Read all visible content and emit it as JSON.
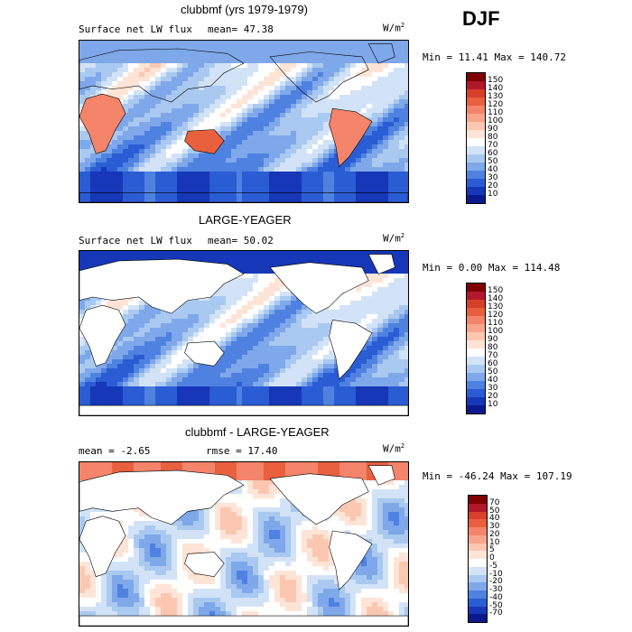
{
  "season": "DJF",
  "panels": [
    {
      "title": "clubbmf (yrs 1979-1979)",
      "left_label": "Surface net LW flux",
      "mean_text": "mean=  47.38",
      "units": "W/m",
      "units_exp": "2",
      "minmax": "Min =  11.41 Max = 140.72",
      "colorbar_labels": [
        "150",
        "140",
        "130",
        "120",
        "110",
        "100",
        "90",
        "80",
        "70",
        "60",
        "50",
        "40",
        "30",
        "20",
        "10"
      ],
      "colorbar_colors": [
        "#7f0000",
        "#b2182b",
        "#d6402b",
        "#e8603e",
        "#f4846a",
        "#f7a58c",
        "#fbc7b1",
        "#fde4d6",
        "#ffffff",
        "#d2e3f7",
        "#a9c9f0",
        "#7fa8ea",
        "#4f82e0",
        "#2a5cd4",
        "#1537b8",
        "#0a1a8c"
      ],
      "land_mask": false
    },
    {
      "title": "LARGE-YEAGER",
      "left_label": "Surface net LW flux",
      "mean_text": "mean=  50.02",
      "units": "W/m",
      "units_exp": "2",
      "minmax": "Min =   0.00 Max = 114.48",
      "colorbar_labels": [
        "150",
        "140",
        "130",
        "120",
        "110",
        "100",
        "90",
        "80",
        "70",
        "60",
        "50",
        "40",
        "30",
        "20",
        "10"
      ],
      "colorbar_colors": [
        "#7f0000",
        "#b2182b",
        "#d6402b",
        "#e8603e",
        "#f4846a",
        "#f7a58c",
        "#fbc7b1",
        "#fde4d6",
        "#ffffff",
        "#d2e3f7",
        "#a9c9f0",
        "#7fa8ea",
        "#4f82e0",
        "#2a5cd4",
        "#1537b8",
        "#0a1a8c"
      ],
      "land_mask": true
    },
    {
      "title": "clubbmf - LARGE-YEAGER",
      "left_label": "mean =   -2.65",
      "mean_text": "rmse =   17.40",
      "units": "W/m",
      "units_exp": "2",
      "minmax": "Min = -46.24 Max = 107.19",
      "colorbar_labels": [
        "70",
        "50",
        "40",
        "30",
        "20",
        "10",
        "5",
        "0",
        "-5",
        "-10",
        "-20",
        "-30",
        "-40",
        "-50",
        "-70"
      ],
      "colorbar_colors": [
        "#7f0000",
        "#b2182b",
        "#d6402b",
        "#e8603e",
        "#f4846a",
        "#f7a58c",
        "#fbc7b1",
        "#fde4d6",
        "#ffffff",
        "#d2e3f7",
        "#a9c9f0",
        "#7fa8ea",
        "#4f82e0",
        "#2a5cd4",
        "#1537b8",
        "#0a1a8c"
      ],
      "land_mask": true
    }
  ]
}
